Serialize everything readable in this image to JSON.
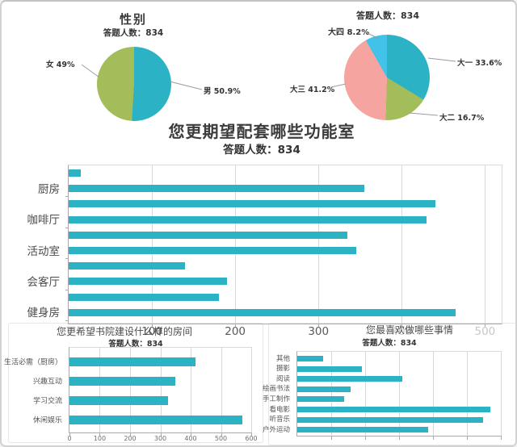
{
  "colors": {
    "teal": "#2BB2C4",
    "green": "#A3BD5B",
    "pink": "#F5A4A0",
    "sky": "#41C2E9",
    "grid": "#D8D8D8",
    "axis": "#A9A9A9",
    "text_dark": "#3C3C3C",
    "text_mid": "#595959"
  },
  "chart_data": [
    {
      "type": "pie",
      "title": "性别",
      "respondents": "答题人数：834",
      "legend_position": "callout",
      "series": [
        {
          "label": "男",
          "value": 50.9,
          "color": "#2BB2C4"
        },
        {
          "label": "女",
          "value": 49.0,
          "color": "#A3BD5B"
        }
      ],
      "callouts": [
        {
          "text": "男 50.9%"
        },
        {
          "text": "女 49%"
        }
      ]
    },
    {
      "type": "pie",
      "title": "",
      "respondents": "答题人数：834",
      "legend_position": "callout",
      "series": [
        {
          "label": "大一",
          "value": 33.6,
          "color": "#2BB2C4"
        },
        {
          "label": "大二",
          "value": 16.7,
          "color": "#A3BD5B"
        },
        {
          "label": "大三",
          "value": 41.2,
          "color": "#F5A4A0"
        },
        {
          "label": "大四",
          "value": 8.2,
          "color": "#41C2E9"
        }
      ],
      "callouts": [
        {
          "text": "大四 8.2%"
        },
        {
          "text": "大一 33.6%"
        },
        {
          "text": "大三 41.2%"
        },
        {
          "text": "大二 16.7%"
        }
      ]
    },
    {
      "type": "bar",
      "title": "您更期望配套哪些功能室",
      "respondents": "答题人数：834",
      "bar_color": "#2BB2C4",
      "orientation": "horizontal",
      "categories": [
        "",
        "厨房",
        "",
        "咖啡厅",
        "",
        "活动室",
        "",
        "会客厅",
        "",
        "健身房"
      ],
      "values": [
        15,
        355,
        440,
        430,
        335,
        345,
        140,
        190,
        180,
        465
      ],
      "axis_max": 520,
      "xticks": [
        100,
        200,
        300,
        400,
        500
      ],
      "muted_xticks": [
        400,
        500
      ],
      "show_xtick_labels": true,
      "grid": true
    },
    {
      "type": "bar",
      "title": "您更希望书院建设什么样的房间",
      "respondents": "答题人数：834",
      "bar_color": "#2BB2C4",
      "orientation": "horizontal",
      "categories": [
        "生活必需（厨房）",
        "兴趣互动",
        "学习交流",
        "休闲娱乐"
      ],
      "values": [
        415,
        350,
        325,
        570
      ],
      "axis_max": 600,
      "xticks": [
        0,
        100,
        200,
        300,
        400,
        500,
        600
      ],
      "show_xtick_labels": true,
      "grid": true
    },
    {
      "type": "bar",
      "title": "您最喜欢做哪些事情",
      "respondents": "答题人数：834",
      "bar_color": "#2BB2C4",
      "orientation": "horizontal",
      "categories": [
        "其他",
        "摄影",
        "阅读",
        "绘画书法",
        "手工制作",
        "看电影",
        "听音乐",
        "户外运动"
      ],
      "values": [
        76,
        190,
        310,
        156,
        138,
        570,
        548,
        386
      ],
      "axis_max": 600,
      "xticks": [
        100,
        200,
        300,
        400,
        500,
        600
      ],
      "show_xtick_labels": false,
      "grid": true
    }
  ]
}
